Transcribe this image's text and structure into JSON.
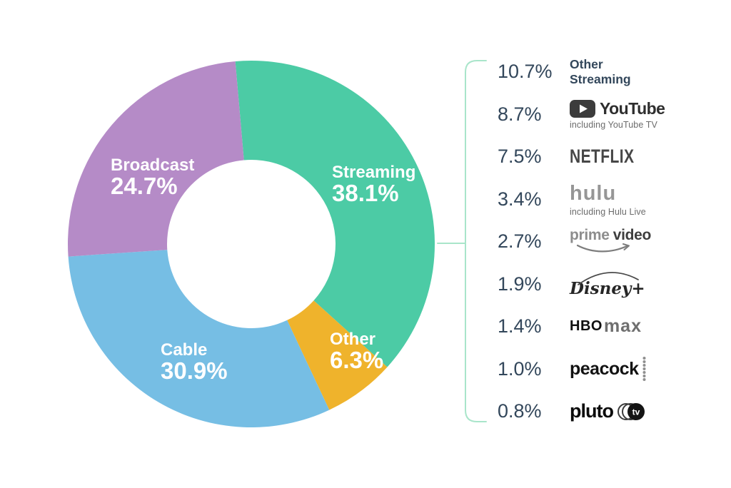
{
  "chart_data": {
    "type": "pie",
    "subtype": "donut",
    "units": "%",
    "start_angle_deg": -5,
    "legend_position": "right",
    "connector_color": "#A9E5CA",
    "slices": [
      {
        "label": "Streaming",
        "value": 38.1,
        "display": "38.1%",
        "color": "#4CCBA5"
      },
      {
        "label": "Other",
        "value": 6.3,
        "display": "6.3%",
        "color": "#EFB32C"
      },
      {
        "label": "Cable",
        "value": 30.9,
        "display": "30.9%",
        "color": "#76BEE4"
      },
      {
        "label": "Broadcast",
        "value": 24.7,
        "display": "24.7%",
        "color": "#B58BC7"
      }
    ],
    "streaming_breakdown": [
      {
        "label": "Other Streaming",
        "value": 10.7,
        "pct": "10.7%",
        "logo": "text",
        "text": "Other Streaming"
      },
      {
        "label": "YouTube",
        "value": 8.7,
        "pct": "8.7%",
        "logo": "youtube",
        "text": "YouTube",
        "caption": "including YouTube TV"
      },
      {
        "label": "Netflix",
        "value": 7.5,
        "pct": "7.5%",
        "logo": "netflix",
        "text": "NETFLIX"
      },
      {
        "label": "Hulu",
        "value": 3.4,
        "pct": "3.4%",
        "logo": "hulu",
        "text": "hulu",
        "caption": "including Hulu Live"
      },
      {
        "label": "Prime Video",
        "value": 2.7,
        "pct": "2.7%",
        "logo": "primevideo",
        "text_light": "prime",
        "text_dark": "video"
      },
      {
        "label": "Disney+",
        "value": 1.9,
        "pct": "1.9%",
        "logo": "disneyplus",
        "text": "Disney+"
      },
      {
        "label": "HBO Max",
        "value": 1.4,
        "pct": "1.4%",
        "logo": "hbomax",
        "text_bold": "HBO",
        "text_light": "max"
      },
      {
        "label": "Peacock",
        "value": 1.0,
        "pct": "1.0%",
        "logo": "peacock",
        "text": "peacock"
      },
      {
        "label": "Pluto TV",
        "value": 0.8,
        "pct": "0.8%",
        "logo": "plutotv",
        "text": "pluto",
        "badge_text": "tv"
      }
    ]
  }
}
